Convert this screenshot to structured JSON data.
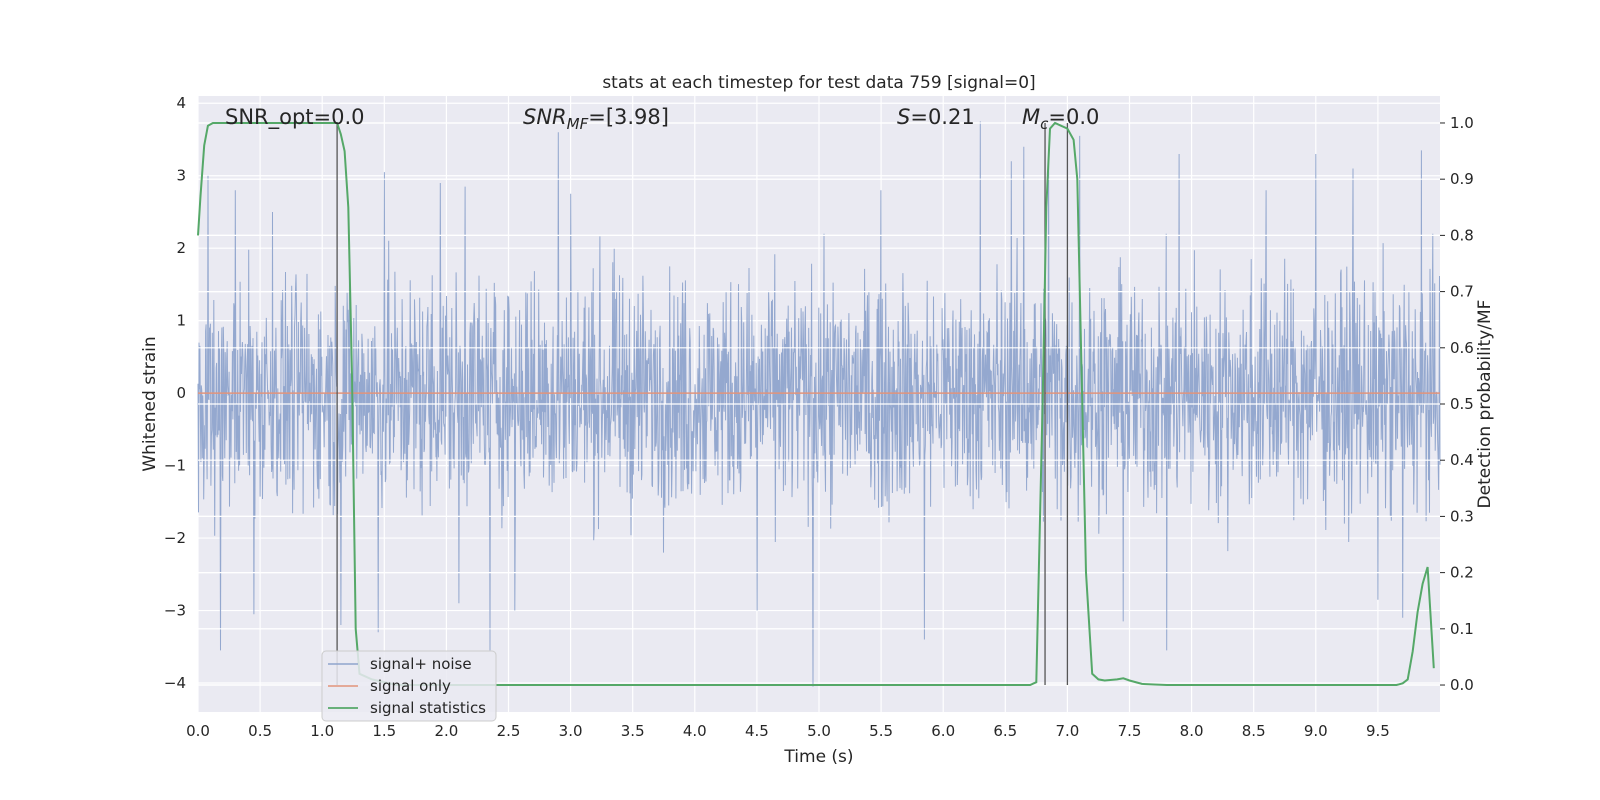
{
  "chart_data": {
    "type": "line",
    "title": "stats at each timestep for test data 759 [signal=0]",
    "xlabel": "Time (s)",
    "ylabel": "Whitened strain",
    "y2label": "Detection probability/MF",
    "xlim": [
      0,
      10
    ],
    "ylim": [
      -4.4,
      4.1
    ],
    "y2lim": [
      -0.048,
      1.048
    ],
    "xticks": [
      "0.0",
      "0.5",
      "1.0",
      "1.5",
      "2.0",
      "2.5",
      "3.0",
      "3.5",
      "4.0",
      "4.5",
      "5.0",
      "5.5",
      "6.0",
      "6.5",
      "7.0",
      "7.5",
      "8.0",
      "8.5",
      "9.0",
      "9.5"
    ],
    "yticks": [
      "4",
      "3",
      "2",
      "1",
      "0",
      "−1",
      "−2",
      "−3",
      "−4"
    ],
    "y2ticks": [
      "1.0",
      "0.9",
      "0.8",
      "0.7",
      "0.6",
      "0.5",
      "0.4",
      "0.3",
      "0.2",
      "0.1",
      "0.0"
    ],
    "grid": true,
    "legend_position": "lower-left",
    "annotations": {
      "snr_opt": "SNR_opt=0.0",
      "snr_mf_main": "SNR",
      "snr_mf_sub": "MF",
      "snr_mf_value": "=[3.98]",
      "s_main": "S",
      "s_value": "=0.21",
      "mc_main": "M",
      "mc_sub": "c",
      "mc_value": "=0.0"
    },
    "vertical_lines_x": [
      1.12,
      6.82,
      7.0
    ],
    "series": [
      {
        "name": "signal+ noise",
        "color": "#8fa4cc",
        "description_values": "noise band approx ±1.5 typical, peaks to +3.7 and −4.0",
        "peaks": [
          {
            "x": 0.08,
            "y": 3.0
          },
          {
            "x": 0.18,
            "y": -3.55
          },
          {
            "x": 0.3,
            "y": 2.8
          },
          {
            "x": 0.45,
            "y": -3.05
          },
          {
            "x": 0.6,
            "y": 2.5
          },
          {
            "x": 1.15,
            "y": -3.2
          },
          {
            "x": 1.45,
            "y": -3.3
          },
          {
            "x": 1.5,
            "y": 3.05
          },
          {
            "x": 1.95,
            "y": 2.9
          },
          {
            "x": 2.1,
            "y": -2.9
          },
          {
            "x": 2.15,
            "y": 2.85
          },
          {
            "x": 2.35,
            "y": -3.55
          },
          {
            "x": 2.55,
            "y": -3.0
          },
          {
            "x": 2.9,
            "y": 3.6
          },
          {
            "x": 3.0,
            "y": 2.75
          },
          {
            "x": 4.5,
            "y": -3.0
          },
          {
            "x": 4.95,
            "y": -4.05
          },
          {
            "x": 5.5,
            "y": 2.8
          },
          {
            "x": 5.85,
            "y": -3.4
          },
          {
            "x": 6.3,
            "y": 3.75
          },
          {
            "x": 6.55,
            "y": 3.2
          },
          {
            "x": 6.65,
            "y": 3.4
          },
          {
            "x": 6.85,
            "y": 3.3
          },
          {
            "x": 7.1,
            "y": 3.55
          },
          {
            "x": 7.45,
            "y": -3.15
          },
          {
            "x": 7.8,
            "y": -3.55
          },
          {
            "x": 7.9,
            "y": 3.3
          },
          {
            "x": 8.6,
            "y": 2.8
          },
          {
            "x": 9.0,
            "y": 3.3
          },
          {
            "x": 9.3,
            "y": 3.1
          },
          {
            "x": 9.5,
            "y": -2.85
          },
          {
            "x": 9.7,
            "y": -3.1
          },
          {
            "x": 9.85,
            "y": 3.35
          }
        ]
      },
      {
        "name": "signal only",
        "color": "#e1937b",
        "x": [
          0,
          10
        ],
        "y": [
          0,
          0
        ]
      },
      {
        "name": "signal statistics",
        "color": "#55a868",
        "axis": "right",
        "x": [
          0.0,
          0.02,
          0.05,
          0.08,
          0.12,
          0.2,
          0.4,
          0.6,
          0.8,
          1.0,
          1.1,
          1.12,
          1.15,
          1.18,
          1.21,
          1.24,
          1.27,
          1.3,
          1.4,
          1.6,
          2.0,
          3.0,
          4.0,
          5.0,
          6.0,
          6.5,
          6.7,
          6.75,
          6.8,
          6.83,
          6.86,
          6.9,
          6.95,
          7.0,
          7.05,
          7.08,
          7.1,
          7.15,
          7.2,
          7.25,
          7.3,
          7.4,
          7.45,
          7.5,
          7.6,
          7.8,
          8.0,
          8.5,
          9.0,
          9.5,
          9.65,
          9.7,
          9.74,
          9.78,
          9.82,
          9.86,
          9.9,
          9.95
        ],
        "y": [
          0.8,
          0.87,
          0.96,
          0.995,
          1.0,
          1.0,
          1.0,
          1.0,
          1.0,
          1.0,
          1.0,
          1.0,
          0.98,
          0.95,
          0.85,
          0.55,
          0.1,
          0.02,
          0.01,
          0.0,
          0.0,
          0.0,
          0.0,
          0.0,
          0.0,
          0.0,
          0.0,
          0.005,
          0.5,
          0.85,
          0.99,
          1.0,
          0.995,
          0.99,
          0.97,
          0.9,
          0.7,
          0.2,
          0.02,
          0.01,
          0.008,
          0.01,
          0.012,
          0.008,
          0.002,
          0.0,
          0.0,
          0.0,
          0.0,
          0.0,
          0.0,
          0.003,
          0.01,
          0.06,
          0.13,
          0.18,
          0.21,
          0.03
        ]
      }
    ]
  }
}
